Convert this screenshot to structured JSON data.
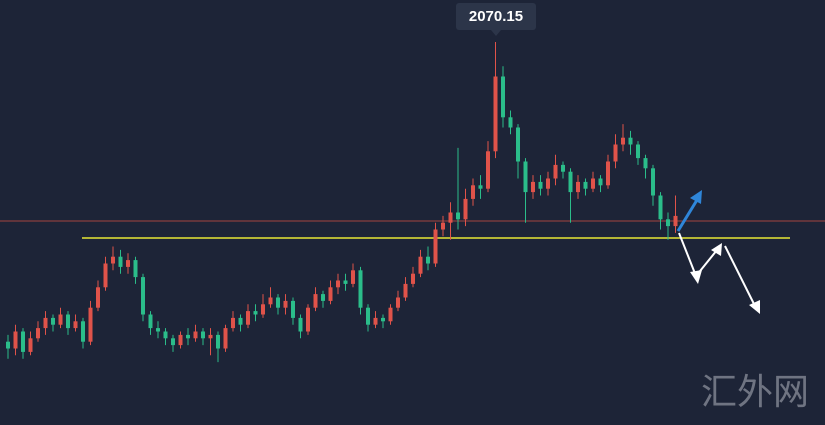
{
  "chart_data": {
    "type": "candlestick",
    "ylim": [
      1957.5,
      2082.5
    ],
    "up_color": "#e0534a",
    "down_color": "#2bbd8a",
    "open": [
      1982,
      1980,
      1985,
      1979,
      1983,
      1986,
      1989,
      1987,
      1990,
      1986,
      1988,
      1982,
      1992,
      1998,
      2005,
      2007,
      2004,
      2006,
      2001,
      1990,
      1986,
      1985,
      1983,
      1981,
      1984,
      1983,
      1985,
      1983,
      1984,
      1980,
      1986,
      1989,
      1987,
      1991,
      1990,
      1993,
      1995,
      1992,
      1994,
      1989,
      1985,
      1992,
      1996,
      1994,
      1998,
      2000,
      1999,
      2003,
      1992,
      1987,
      1989,
      1988,
      1992,
      1995,
      1999,
      2002,
      2007,
      2005,
      2015,
      2017,
      2020,
      2018,
      2024,
      2028,
      2027,
      2038,
      2060,
      2048,
      2045,
      2035,
      2026,
      2029,
      2027,
      2030,
      2034,
      2032,
      2026,
      2029,
      2027,
      2030,
      2028,
      2035,
      2040,
      2042,
      2040,
      2036,
      2033,
      2025,
      2018,
      2016
    ],
    "high": [
      1984,
      1987,
      1986,
      1985,
      1988,
      1991,
      1990,
      1992,
      1991,
      1990,
      1989,
      1994,
      2000,
      2007,
      2010,
      2009,
      2008,
      2007,
      2002,
      1991,
      1988,
      1986,
      1984,
      1985,
      1986,
      1987,
      1986,
      1986,
      1985,
      1987,
      1991,
      1990,
      1993,
      1993,
      1996,
      1998,
      1996,
      1996,
      1995,
      1990,
      1993,
      1998,
      1997,
      2000,
      2002,
      2002,
      2005,
      2004,
      1993,
      1991,
      1990,
      1993,
      1997,
      2001,
      2004,
      2009,
      2010,
      2017,
      2019,
      2023,
      2039,
      2027,
      2030,
      2031,
      2041,
      2070.15,
      2063,
      2050,
      2046,
      2036,
      2031,
      2031,
      2032,
      2037,
      2035,
      2033,
      2031,
      2030,
      2032,
      2031,
      2037,
      2043,
      2046,
      2044,
      2041,
      2037,
      2034,
      2026,
      2020,
      2025
    ],
    "low": [
      1977,
      1978,
      1977,
      1978,
      1982,
      1984,
      1985,
      1986,
      1984,
      1985,
      1980,
      1981,
      1991,
      1997,
      2003,
      2002,
      2002,
      1999,
      1988,
      1984,
      1983,
      1981,
      1979,
      1980,
      1981,
      1982,
      1981,
      1978,
      1976,
      1979,
      1985,
      1985,
      1986,
      1988,
      1989,
      1992,
      1990,
      1990,
      1987,
      1983,
      1984,
      1991,
      1992,
      1993,
      1996,
      1997,
      1998,
      1990,
      1985,
      1986,
      1986,
      1987,
      1991,
      1994,
      1998,
      2001,
      2003,
      2004,
      2013,
      2012,
      2015,
      2016,
      2022,
      2024,
      2026,
      2036,
      2045,
      2043,
      2030,
      2017,
      2024,
      2025,
      2025,
      2028,
      2030,
      2017,
      2024,
      2025,
      2026,
      2026,
      2027,
      2033,
      2038,
      2037,
      2034,
      2030,
      2022,
      2015,
      2012,
      2014
    ],
    "close": [
      1980,
      1985,
      1979,
      1983,
      1986,
      1989,
      1987,
      1990,
      1986,
      1988,
      1982,
      1992,
      1998,
      2005,
      2007,
      2004,
      2006,
      2001,
      1990,
      1986,
      1985,
      1983,
      1981,
      1984,
      1983,
      1985,
      1983,
      1984,
      1980,
      1986,
      1989,
      1987,
      1991,
      1990,
      1993,
      1995,
      1992,
      1994,
      1989,
      1985,
      1992,
      1996,
      1994,
      1998,
      2000,
      1999,
      2003,
      1992,
      1987,
      1989,
      1988,
      1992,
      1995,
      1999,
      2002,
      2007,
      2005,
      2015,
      2017,
      2020,
      2018,
      2024,
      2028,
      2027,
      2038,
      2060,
      2048,
      2045,
      2035,
      2026,
      2029,
      2027,
      2030,
      2034,
      2032,
      2026,
      2029,
      2027,
      2030,
      2028,
      2035,
      2040,
      2042,
      2040,
      2036,
      2033,
      2025,
      2018,
      2016,
      2019
    ],
    "lines": [
      {
        "value": 2017.5,
        "color": "#a4443f"
      },
      {
        "value": 2012.5,
        "color": "#e6e635"
      }
    ],
    "watermark": "汇外网"
  }
}
